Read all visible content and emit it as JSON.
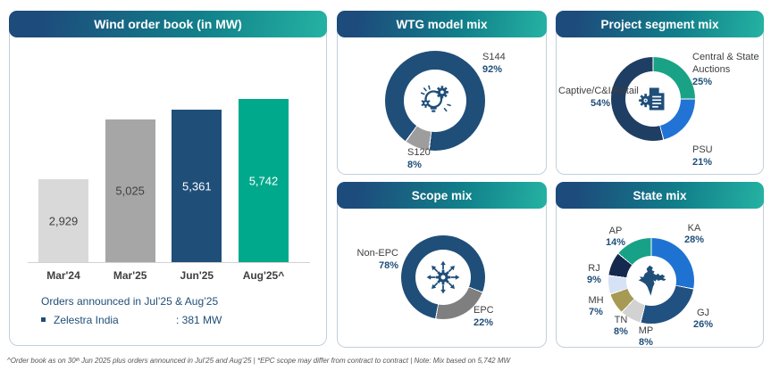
{
  "order_book": {
    "orders_heading": "Orders announced in Jul’25 & Aug’25",
    "orders": [
      {
        "name": "Zelestra India",
        "value": ": 381 MW"
      }
    ]
  },
  "footer": {
    "text": "^Order book as on 30ᵗʰ Jun 2025 plus orders announced in Jul’25 and Aug’25   |   *EPC scope may differ from contract to contract | Note: Mix based on 5,742 MW"
  },
  "chart_data": [
    {
      "id": "order_book",
      "type": "bar",
      "title": "Wind order book (in MW)",
      "categories": [
        "Mar'24",
        "Mar'25",
        "Jun'25",
        "Aug'25^"
      ],
      "values": [
        2929,
        5025,
        5361,
        5742
      ],
      "value_labels": [
        "2,929",
        "5,025",
        "5,361",
        "5,742"
      ],
      "bar_colors": [
        "#d9d9d9",
        "#a6a6a6",
        "#1f4e79",
        "#00a98c"
      ],
      "value_label_colors": [
        "#3f3f3f",
        "#3f3f3f",
        "#ffffff",
        "#ffffff"
      ],
      "ylim": [
        0,
        5742
      ],
      "grid": false
    },
    {
      "id": "wtg_mix",
      "type": "donut",
      "title": "WTG model mix",
      "center_icon": "innovation-icon",
      "start_angle": 187,
      "segments": [
        {
          "label": "S120",
          "pct": 8,
          "pct_label": "8%",
          "color": "#9d9d9d"
        },
        {
          "label": "S144",
          "pct": 92,
          "pct_label": "92%",
          "color": "#1f4e79"
        }
      ]
    },
    {
      "id": "project_mix",
      "type": "donut",
      "title": "Project segment mix",
      "center_icon": "document-gear-icon",
      "start_angle": 0,
      "segments": [
        {
          "label": "Central & State Auctions",
          "pct": 25,
          "pct_label": "25%",
          "color": "#1aa286"
        },
        {
          "label": "PSU",
          "pct": 21,
          "pct_label": "21%",
          "color": "#2173d5"
        },
        {
          "label": "Captive/C&I/Retail",
          "pct": 54,
          "pct_label": "54%",
          "color": "#1f3e63"
        }
      ]
    },
    {
      "id": "scope_mix",
      "type": "donut",
      "title": "Scope mix",
      "center_icon": "gear-arrows-icon",
      "start_angle": 111,
      "segments": [
        {
          "label": "EPC",
          "pct": 22,
          "pct_label": "22%",
          "color": "#7f7f7f"
        },
        {
          "label": "Non-EPC",
          "pct": 78,
          "pct_label": "78%",
          "color": "#1f4e79"
        }
      ]
    },
    {
      "id": "state_mix",
      "type": "donut",
      "title": "State mix",
      "center_icon": "india-map-icon",
      "start_angle": 0,
      "segments": [
        {
          "label": "KA",
          "pct": 28,
          "pct_label": "28%",
          "color": "#1e73d2"
        },
        {
          "label": "GJ",
          "pct": 26,
          "pct_label": "26%",
          "color": "#215180"
        },
        {
          "label": "MP",
          "pct": 8,
          "pct_label": "8%",
          "color": "#d2d2d2"
        },
        {
          "label": "TN",
          "pct": 8,
          "pct_label": "8%",
          "color": "#a69a55"
        },
        {
          "label": "MH",
          "pct": 7,
          "pct_label": "7%",
          "color": "#d6e2f5"
        },
        {
          "label": "RJ",
          "pct": 9,
          "pct_label": "9%",
          "color": "#14294d"
        },
        {
          "label": "AP",
          "pct": 14,
          "pct_label": "14%",
          "color": "#17a287"
        }
      ]
    }
  ]
}
